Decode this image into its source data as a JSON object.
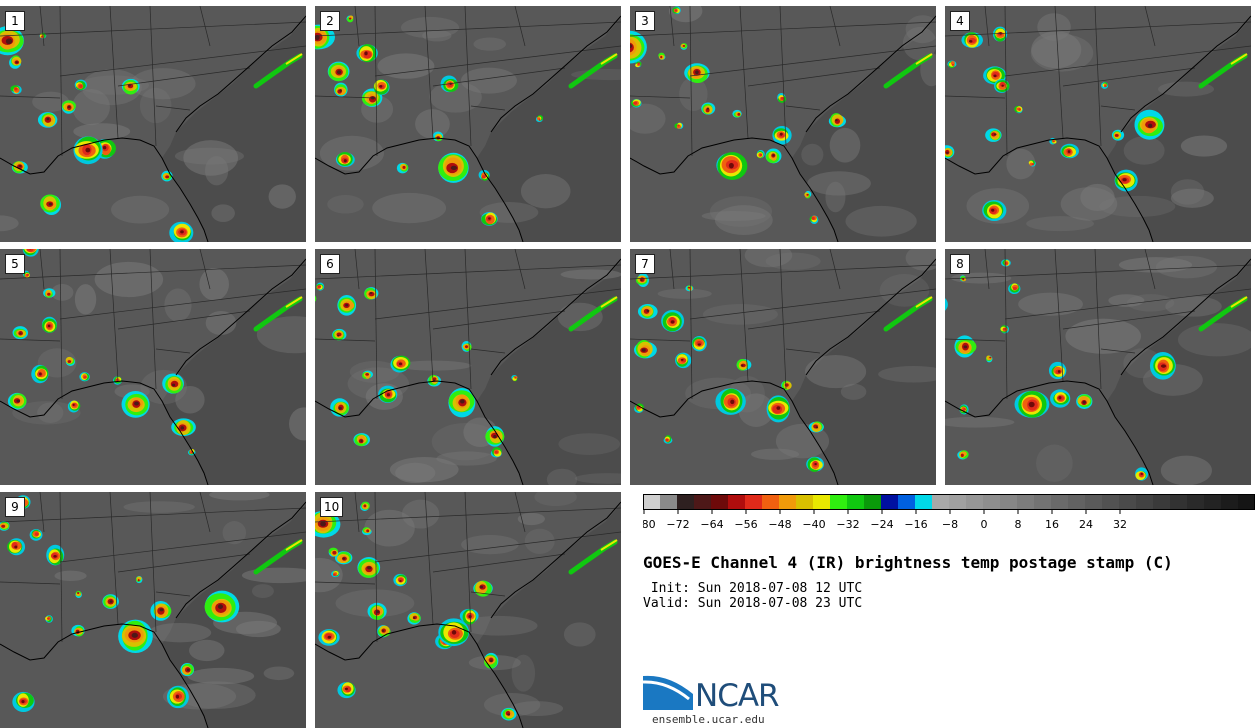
{
  "title": "GOES-E Channel 4 (IR) brightness temp postage stamp (C)",
  "init": " Init: Sun 2018-07-08 12 UTC",
  "valid": "Valid: Sun 2018-07-08 23 UTC",
  "panels": [
    "1",
    "2",
    "3",
    "4",
    "5",
    "6",
    "7",
    "8",
    "9",
    "10"
  ],
  "colorbar": {
    "ticks": [
      "-80",
      "-72",
      "-64",
      "-56",
      "-48",
      "-40",
      "-32",
      "-24",
      "-16",
      "-8",
      "0",
      "8",
      "16",
      "24",
      "32"
    ],
    "colors": [
      "#cfcfcf",
      "#8a8a8a",
      "#2e2020",
      "#4d1818",
      "#6e0a0a",
      "#b00d0d",
      "#e02a1a",
      "#f06010",
      "#f09a0a",
      "#d8c000",
      "#e8e800",
      "#30ee10",
      "#10c810",
      "#0a9a0a",
      "#0010a0",
      "#0060e0",
      "#00d8e8",
      "#a8a8a8",
      "#a0a0a0",
      "#969696",
      "#8e8e8e",
      "#868686",
      "#7c7c7c",
      "#737373",
      "#6a6a6a",
      "#626262",
      "#5a5a5a",
      "#525252",
      "#4a4a4a",
      "#424242",
      "#3a3a3a",
      "#323232",
      "#2a2a2a",
      "#232323",
      "#1c1c1c",
      "#151515"
    ]
  },
  "logo": {
    "name": "NCAR",
    "url": "ensemble.ucar.edu"
  }
}
